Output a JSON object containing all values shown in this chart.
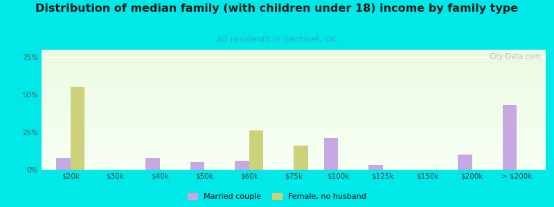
{
  "title": "Distribution of median family (with children under 18) income by family type",
  "subtitle": "All residents in Sentinel, OK",
  "categories": [
    "$20k",
    "$30k",
    "$40k",
    "$50k",
    "$60k",
    "$75k",
    "$100k",
    "$125k",
    "$150k",
    "$200k",
    "> $200k"
  ],
  "married_couple": [
    8,
    0,
    8,
    5,
    6,
    0,
    21,
    3,
    0,
    10,
    43
  ],
  "female_no_husband": [
    55,
    0,
    0,
    0,
    26,
    16,
    0,
    0,
    0,
    0,
    0
  ],
  "married_color": "#c8a8e0",
  "female_color": "#cdd17a",
  "bg_color": "#00e8e8",
  "title_fontsize": 11.5,
  "subtitle_color": "#33aacc",
  "subtitle_fontsize": 9,
  "ylim": [
    0,
    80
  ],
  "yticks": [
    0,
    25,
    50,
    75
  ],
  "ytick_labels": [
    "0%",
    "25%",
    "50%",
    "75%"
  ],
  "watermark": "City-Data.com",
  "bar_width": 0.32,
  "legend_married": "Married couple",
  "legend_female": "Female, no husband"
}
